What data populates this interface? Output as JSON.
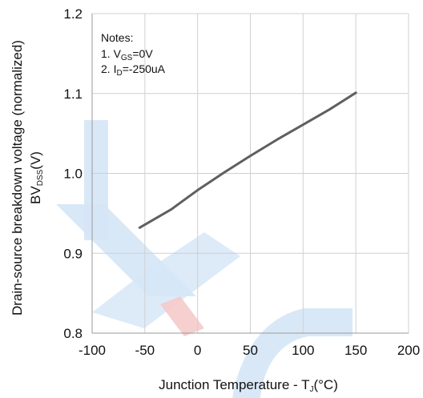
{
  "chart_data": {
    "type": "line",
    "title": "",
    "xlabel": {
      "main": "Junction Temperature - T",
      "sub": "J",
      "tail": "(°C)"
    },
    "ylabel": {
      "line1": "Drain-source breakdown voltage (normalized)",
      "line2_main": "BV",
      "line2_sub": "DSS",
      "line2_tail": "(V)"
    },
    "xlim": [
      -100,
      200
    ],
    "ylim": [
      0.8,
      1.2
    ],
    "xticks": [
      "-100",
      "-50",
      "0",
      "50",
      "100",
      "150",
      "200"
    ],
    "xtick_values": [
      -100,
      -50,
      0,
      50,
      100,
      150,
      200
    ],
    "yticks": [
      "0.8",
      "0.9",
      "1.0",
      "1.1",
      "1.2"
    ],
    "ytick_values": [
      0.8,
      0.9,
      1.0,
      1.1,
      1.2
    ],
    "grid": true,
    "series": [
      {
        "color": "#5f5f5f",
        "x": [
          -55,
          -25,
          0,
          25,
          50,
          75,
          100,
          125,
          150
        ],
        "y": [
          0.932,
          0.955,
          0.979,
          1.001,
          1.022,
          1.042,
          1.061,
          1.08,
          1.101
        ]
      }
    ],
    "notes": {
      "title": "Notes:",
      "items": [
        {
          "prefix": "1. V",
          "sub": "GS",
          "suffix": "=0V"
        },
        {
          "prefix": "2. I",
          "sub": "D",
          "suffix": "=-250uA"
        }
      ]
    }
  },
  "colors": {
    "watermark_blue": "#d5e6f6",
    "watermark_red": "#f5caca",
    "grid": "#d0d0d0",
    "axis": "#9a9a9a"
  }
}
